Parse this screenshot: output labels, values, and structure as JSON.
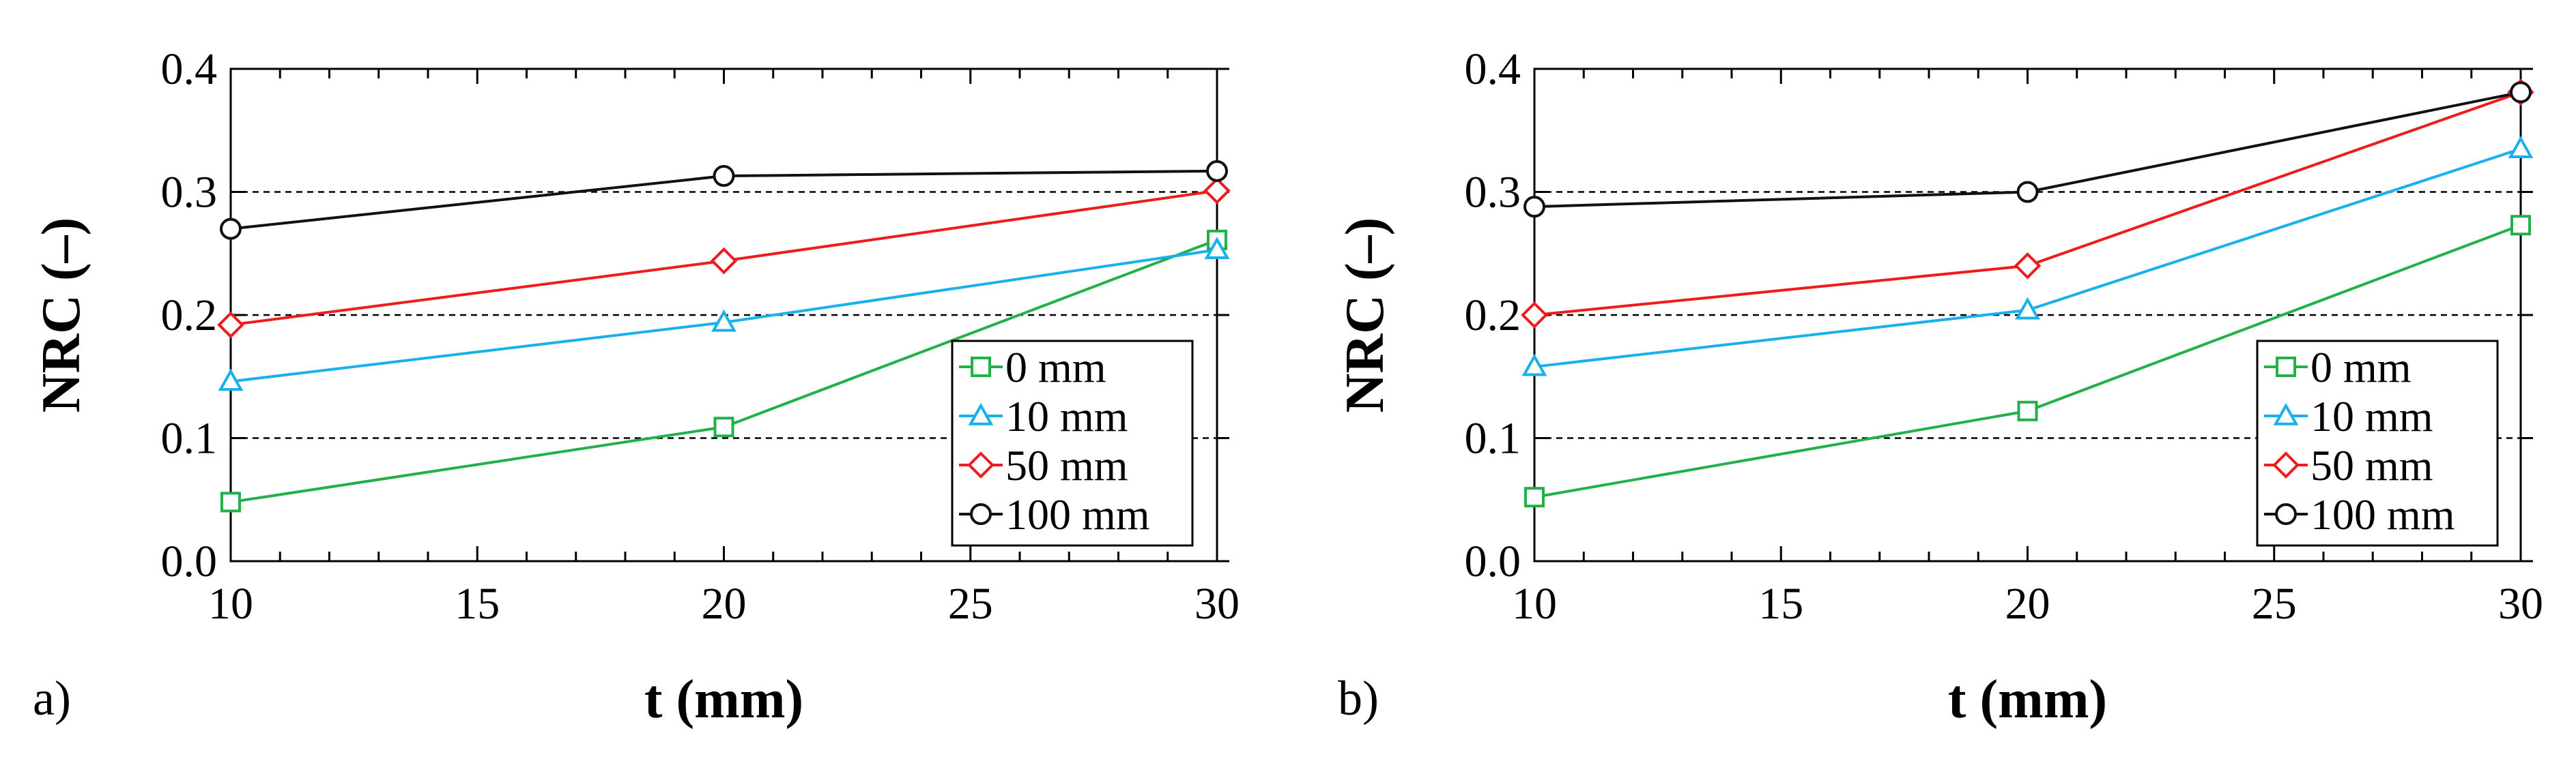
{
  "chart_data": [
    {
      "type": "line",
      "panel_label": "a)",
      "xlabel": "t (mm)",
      "ylabel": "NRC (–)",
      "xlim": [
        10,
        30
      ],
      "ylim": [
        0.0,
        0.4
      ],
      "xticks": [
        10,
        15,
        20,
        25,
        30
      ],
      "xtick_labels": [
        "10",
        "15",
        "20",
        "25",
        "30"
      ],
      "yticks": [
        0.0,
        0.1,
        0.2,
        0.3,
        0.4
      ],
      "ytick_labels": [
        "0.0",
        "0.1",
        "0.2",
        "0.3",
        "0.4"
      ],
      "grid": "horizontal dashed at 0.1, 0.2, 0.3",
      "legend_position": "bottom-right",
      "x": [
        10,
        20,
        30
      ],
      "series": [
        {
          "name": "0 mm",
          "marker": "square",
          "color": "#22b04b",
          "values": [
            0.048,
            0.109,
            0.261
          ]
        },
        {
          "name": "10 mm",
          "marker": "triangle",
          "color": "#1ab0ea",
          "values": [
            0.146,
            0.194,
            0.253
          ]
        },
        {
          "name": "50 mm",
          "marker": "diamond",
          "color": "#ee1c1c",
          "values": [
            0.192,
            0.244,
            0.301
          ]
        },
        {
          "name": "100 mm",
          "marker": "circle",
          "color": "#111111",
          "values": [
            0.27,
            0.313,
            0.317
          ]
        }
      ]
    },
    {
      "type": "line",
      "panel_label": "b)",
      "xlabel": "t (mm)",
      "ylabel": "NRC (–)",
      "xlim": [
        10,
        30
      ],
      "ylim": [
        0.0,
        0.4
      ],
      "xticks": [
        10,
        15,
        20,
        25,
        30
      ],
      "xtick_labels": [
        "10",
        "15",
        "20",
        "25",
        "30"
      ],
      "yticks": [
        0.0,
        0.1,
        0.2,
        0.3,
        0.4
      ],
      "ytick_labels": [
        "0.0",
        "0.1",
        "0.2",
        "0.3",
        "0.4"
      ],
      "grid": "horizontal dashed at 0.1, 0.2, 0.3",
      "legend_position": "bottom-right",
      "x": [
        10,
        20,
        30
      ],
      "series": [
        {
          "name": "0 mm",
          "marker": "square",
          "color": "#22b04b",
          "values": [
            0.052,
            0.122,
            0.273
          ]
        },
        {
          "name": "10 mm",
          "marker": "triangle",
          "color": "#1ab0ea",
          "values": [
            0.158,
            0.204,
            0.335
          ]
        },
        {
          "name": "50 mm",
          "marker": "diamond",
          "color": "#ee1c1c",
          "values": [
            0.2,
            0.24,
            0.381
          ]
        },
        {
          "name": "100 mm",
          "marker": "circle",
          "color": "#111111",
          "values": [
            0.288,
            0.3,
            0.381
          ]
        }
      ]
    }
  ]
}
